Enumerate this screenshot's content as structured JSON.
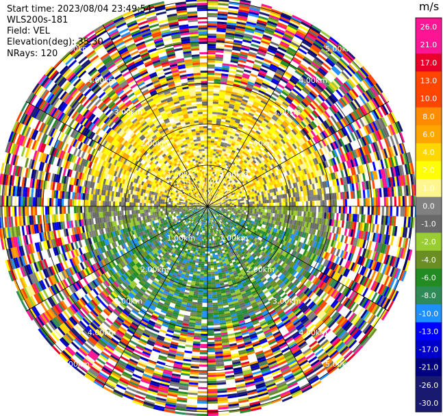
{
  "header": {
    "start_time": "Start time: 2023/08/04 23:49:54",
    "instrument": "WLS200s-181",
    "field": "Field: VEL",
    "elevation": "Elevation(deg): 35.30",
    "nrays": "NRays: 120"
  },
  "chart_data": {
    "type": "heatmap",
    "projection": "polar-ppi",
    "field": "VEL",
    "rays": 120,
    "range_rings_km": [
      1.0,
      2.0,
      3.0,
      4.0,
      5.0
    ],
    "range_ring_labels": [
      "1.00km",
      "2.00km",
      "3.00km",
      "4.00km",
      "5.00km"
    ],
    "range_ring_labels_angles": [
      "upper-left",
      "upper-right",
      "lower-left",
      "lower-right"
    ],
    "spokes_deg": [
      0,
      30,
      60,
      90,
      120,
      150,
      180,
      210,
      240,
      270,
      300,
      330
    ],
    "near_field_pattern": {
      "north_sector": "positive velocities (+1.0 to +4.0 m/s, yellow)",
      "south_sector": "negative velocities (-1.0 to -8.0 m/s, green)",
      "east_west_band": "near zero (gray)",
      "outer_ranges": "noise across full scale"
    },
    "colorbar": {
      "unit": "m/s",
      "ticks": [
        "26.0",
        "21.0",
        "17.0",
        "13.0",
        "10.0",
        "8.0",
        "6.0",
        "4.0",
        "2.0",
        "1.0",
        "0.0",
        "-1.0",
        "-2.0",
        "-4.0",
        "-6.0",
        "-8.0",
        "-10.0",
        "-13.0",
        "-17.0",
        "-21.0",
        "-26.0",
        "-30.0"
      ],
      "colors": [
        "#ff1493",
        "#ff1493",
        "#e8002a",
        "#ff4500",
        "#ff4500",
        "#ff8c00",
        "#ffa500",
        "#ffd700",
        "#ffff00",
        "#fff68f",
        "#808080",
        "#696969",
        "#9acd32",
        "#6b8e23",
        "#228b22",
        "#2e8b57",
        "#1e90ff",
        "#0000ff",
        "#0000cd",
        "#000080",
        "#191970",
        "#191970"
      ]
    }
  }
}
